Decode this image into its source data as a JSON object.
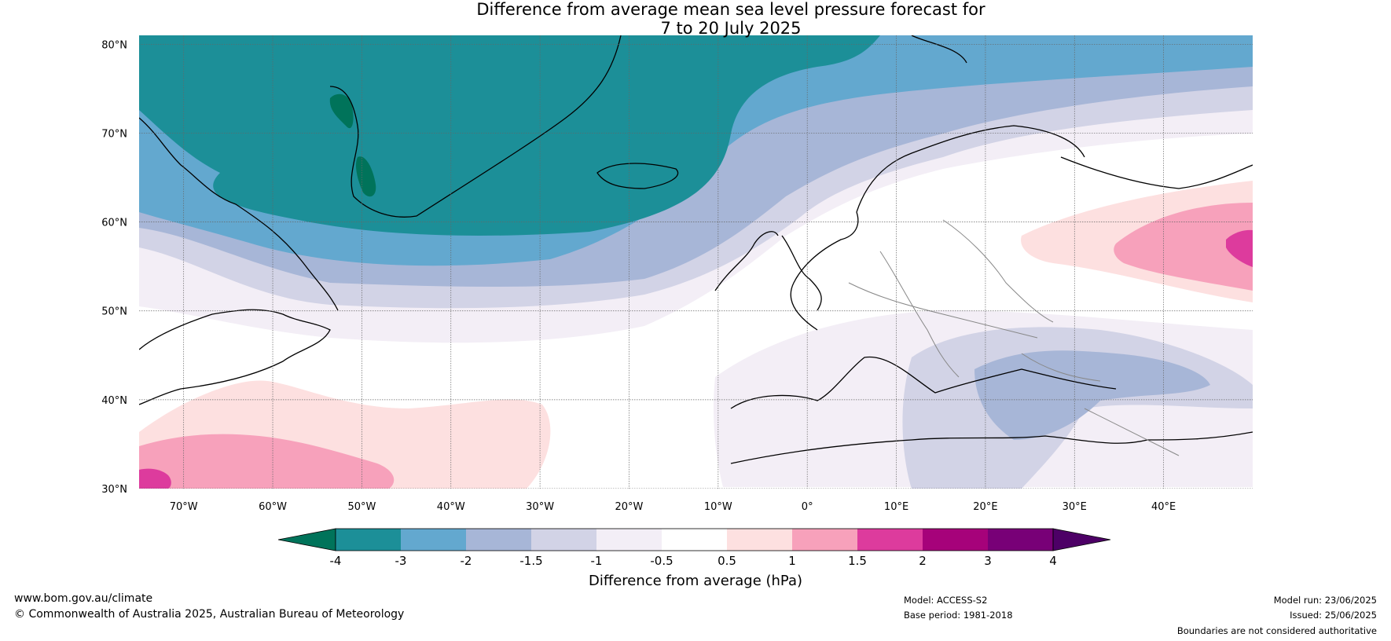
{
  "header": {
    "title_line1": "Difference from average mean sea level pressure forecast for",
    "title_line2": "7 to 20 July 2025"
  },
  "map": {
    "projection": "equirectangular",
    "extent": {
      "lon": [
        -75,
        50
      ],
      "lat": [
        30,
        81
      ]
    },
    "lat_ticks": [
      "80°N",
      "70°N",
      "60°N",
      "50°N",
      "40°N",
      "30°N"
    ],
    "lon_ticks": [
      "70°W",
      "60°W",
      "50°W",
      "40°W",
      "30°W",
      "20°W",
      "10°W",
      "0°",
      "10°E",
      "20°E",
      "30°E",
      "40°E"
    ],
    "gridlines": true
  },
  "colorbar": {
    "title": "Difference from average (hPa)",
    "labels": [
      "-4",
      "-3",
      "-2",
      "-1.5",
      "-1",
      "-0.5",
      "0.5",
      "1",
      "1.5",
      "2",
      "3",
      "4"
    ],
    "colors": [
      "#00735a",
      "#1c8f98",
      "#63a8cf",
      "#a7b6d7",
      "#d2d3e6",
      "#f3eef6",
      "#ffffff",
      "#fde0e0",
      "#f7a1bb",
      "#dd3b9d",
      "#a6027a",
      "#780077",
      "#4d0066"
    ],
    "extend": "both"
  },
  "footer": {
    "website": "www.bom.gov.au/climate",
    "copyright": "© Commonwealth of Australia 2025, Australian Bureau of Meteorology",
    "model": "Model: ACCESS-S2",
    "base_period": "Base period: 1981-2018",
    "model_run": "Model run: 23/06/2025",
    "issued": "Issued: 25/06/2025",
    "disclaimer": "Boundaries are not considered authoritative"
  }
}
